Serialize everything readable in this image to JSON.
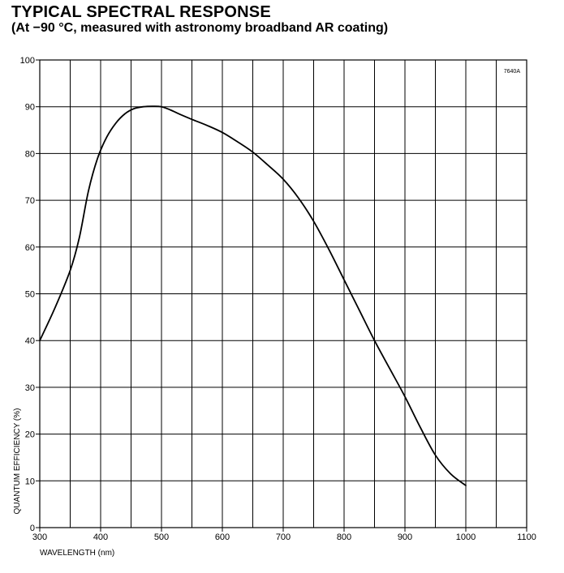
{
  "header": {
    "title": "TYPICAL SPECTRAL RESPONSE",
    "subtitle": "(At −90 °C, measured with astronomy broadband AR coating)"
  },
  "chart_data": {
    "type": "line",
    "title": "TYPICAL SPECTRAL RESPONSE",
    "subtitle": "(At −90 °C, measured with astronomy broadband AR coating)",
    "xlabel": "WAVELENGTH (nm)",
    "ylabel": "QUANTUM EFFICIENCY (%)",
    "reference_code": "7640A",
    "xlim": [
      300,
      1100
    ],
    "ylim": [
      0,
      100
    ],
    "x_ticks": [
      300,
      400,
      500,
      600,
      700,
      800,
      900,
      1000,
      1100
    ],
    "y_ticks": [
      0,
      10,
      20,
      30,
      40,
      50,
      60,
      70,
      80,
      90,
      100
    ],
    "x_minor_step": 50,
    "grid": true,
    "legend": "none",
    "series": [
      {
        "color": "#000000",
        "x": [
          300,
          325,
          350,
          365,
          380,
          395,
          410,
          425,
          440,
          455,
          470,
          485,
          500,
          515,
          530,
          550,
          575,
          600,
          625,
          650,
          675,
          700,
          725,
          750,
          775,
          800,
          825,
          850,
          875,
          900,
          925,
          950,
          975,
          1000
        ],
        "y": [
          40,
          47,
          55,
          62,
          72,
          79,
          83.5,
          86.5,
          88.5,
          89.6,
          90,
          90.1,
          90,
          89.3,
          88.4,
          87.3,
          86,
          84.5,
          82.5,
          80.3,
          77.5,
          74.5,
          70.5,
          65.5,
          59.5,
          53,
          46.5,
          40,
          34,
          28,
          21.5,
          15.5,
          11.5,
          9
        ]
      }
    ]
  }
}
